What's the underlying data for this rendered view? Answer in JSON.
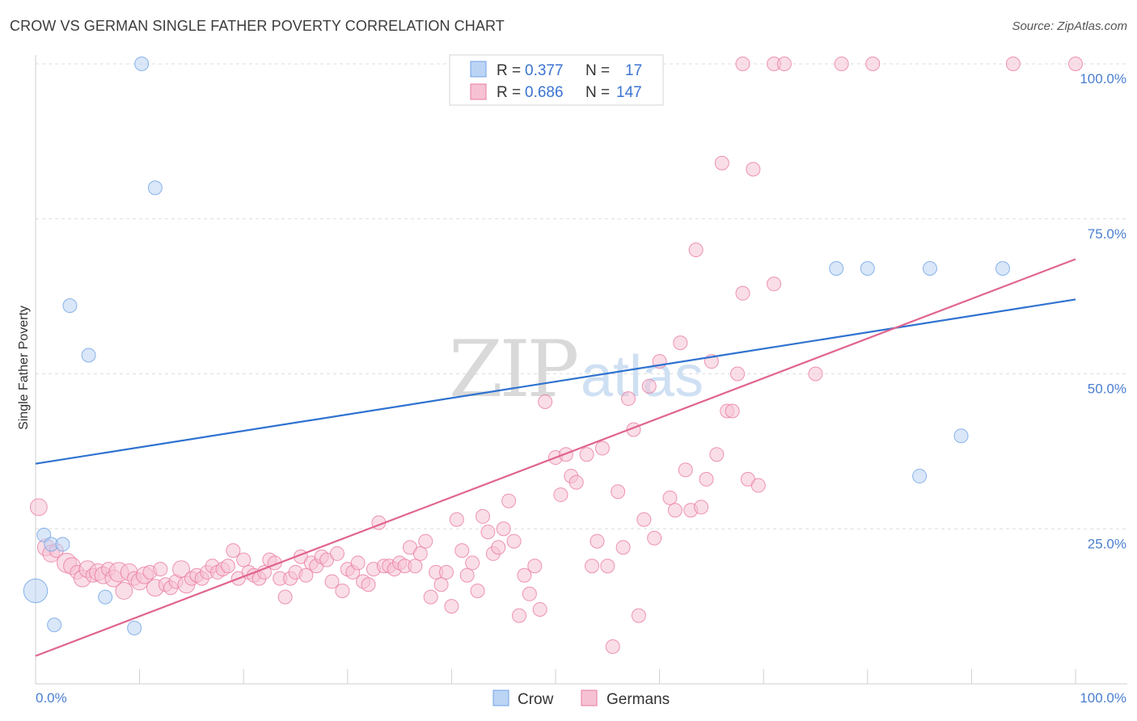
{
  "header": {
    "title": "CROW VS GERMAN SINGLE FATHER POVERTY CORRELATION CHART",
    "source": "Source: ZipAtlas.com"
  },
  "watermark": {
    "part1": "ZIP",
    "part2": "atlas"
  },
  "colors": {
    "crow": "#6ea3e6",
    "crow_fill": "#bcd4f4",
    "germans": "#ea7aa0",
    "germans_fill": "#f6c2d3",
    "crow_line": "#2f72d0",
    "germans_line": "#e0648f",
    "tick": "#4a7fd0"
  },
  "legend": {
    "r_label": "R =",
    "n_label": "N =",
    "rows": [
      {
        "name": "Crow",
        "r": "0.377",
        "n": "17"
      },
      {
        "name": "Germans",
        "r": "0.686",
        "n": "147"
      }
    ]
  },
  "chart_data": {
    "type": "scatter",
    "title": "CROW VS GERMAN SINGLE FATHER POVERTY CORRELATION CHART",
    "ylabel": "Single Father Poverty",
    "xlabel": "",
    "xlim": [
      0,
      100
    ],
    "ylim": [
      0,
      100
    ],
    "x_tick_labels": [
      "0.0%",
      "100.0%"
    ],
    "y_tick_labels": [
      "25.0%",
      "50.0%",
      "75.0%",
      "100.0%"
    ],
    "y_ticks": [
      25,
      50,
      75,
      100
    ],
    "grid": "horizontal dashed",
    "legend_position": "top-center",
    "series": [
      {
        "name": "Crow",
        "r": 0.377,
        "n": 17,
        "trend": {
          "x": [
            0,
            100
          ],
          "y": [
            35.5,
            62.0
          ]
        },
        "points": [
          {
            "x": 0,
            "y": 15,
            "s": 3
          },
          {
            "x": 0.8,
            "y": 24,
            "s": 1
          },
          {
            "x": 1.5,
            "y": 22.5,
            "s": 1
          },
          {
            "x": 1.8,
            "y": 9.5,
            "s": 1
          },
          {
            "x": 2.6,
            "y": 22.5,
            "s": 1
          },
          {
            "x": 3.3,
            "y": 61,
            "s": 1
          },
          {
            "x": 5.1,
            "y": 53,
            "s": 1
          },
          {
            "x": 6.7,
            "y": 14,
            "s": 1
          },
          {
            "x": 9.5,
            "y": 9,
            "s": 1
          },
          {
            "x": 10.2,
            "y": 100,
            "s": 1
          },
          {
            "x": 11.5,
            "y": 80,
            "s": 1
          },
          {
            "x": 77,
            "y": 67,
            "s": 1
          },
          {
            "x": 80,
            "y": 67,
            "s": 1
          },
          {
            "x": 86,
            "y": 67,
            "s": 1
          },
          {
            "x": 89,
            "y": 40,
            "s": 1
          },
          {
            "x": 85,
            "y": 33.5,
            "s": 1
          },
          {
            "x": 93,
            "y": 67,
            "s": 1
          }
        ]
      },
      {
        "name": "Germans",
        "r": 0.686,
        "n": 147,
        "trend": {
          "x": [
            0,
            100
          ],
          "y": [
            4.5,
            68.5
          ]
        },
        "points": [
          {
            "x": 0.3,
            "y": 28.5,
            "s": 1.5
          },
          {
            "x": 1,
            "y": 22,
            "s": 1.5
          },
          {
            "x": 1.5,
            "y": 21,
            "s": 1.5
          },
          {
            "x": 2,
            "y": 21.5,
            "s": 1
          },
          {
            "x": 3,
            "y": 19.5,
            "s": 2
          },
          {
            "x": 3.5,
            "y": 19,
            "s": 1.5
          },
          {
            "x": 4,
            "y": 18,
            "s": 1
          },
          {
            "x": 4.5,
            "y": 17,
            "s": 1.5
          },
          {
            "x": 5,
            "y": 18.5,
            "s": 1.5
          },
          {
            "x": 5.5,
            "y": 17.5,
            "s": 1
          },
          {
            "x": 6,
            "y": 18,
            "s": 1.5
          },
          {
            "x": 6.5,
            "y": 17.5,
            "s": 1.5
          },
          {
            "x": 7,
            "y": 18.5,
            "s": 1
          },
          {
            "x": 7.5,
            "y": 17,
            "s": 1.5
          },
          {
            "x": 8,
            "y": 18,
            "s": 2
          },
          {
            "x": 8.5,
            "y": 15,
            "s": 1.5
          },
          {
            "x": 9,
            "y": 18,
            "s": 1.5
          },
          {
            "x": 9.5,
            "y": 17,
            "s": 1
          },
          {
            "x": 10,
            "y": 16.5,
            "s": 1.5
          },
          {
            "x": 10.5,
            "y": 17.5,
            "s": 1.5
          },
          {
            "x": 11,
            "y": 18,
            "s": 1
          },
          {
            "x": 11.5,
            "y": 15.5,
            "s": 1.5
          },
          {
            "x": 12,
            "y": 18.5,
            "s": 1
          },
          {
            "x": 12.5,
            "y": 16,
            "s": 1
          },
          {
            "x": 13,
            "y": 15.5,
            "s": 1
          },
          {
            "x": 13.5,
            "y": 16.5,
            "s": 1
          },
          {
            "x": 14,
            "y": 18.5,
            "s": 1.5
          },
          {
            "x": 14.5,
            "y": 16,
            "s": 1.5
          },
          {
            "x": 15,
            "y": 17,
            "s": 1
          },
          {
            "x": 15.5,
            "y": 17.5,
            "s": 1
          },
          {
            "x": 16,
            "y": 17,
            "s": 1
          },
          {
            "x": 16.5,
            "y": 18,
            "s": 1
          },
          {
            "x": 17,
            "y": 19,
            "s": 1
          },
          {
            "x": 17.5,
            "y": 18,
            "s": 1
          },
          {
            "x": 18,
            "y": 18.5,
            "s": 1
          },
          {
            "x": 18.5,
            "y": 19,
            "s": 1
          },
          {
            "x": 19,
            "y": 21.5,
            "s": 1
          },
          {
            "x": 19.5,
            "y": 17,
            "s": 1
          },
          {
            "x": 20,
            "y": 20,
            "s": 1
          },
          {
            "x": 20.5,
            "y": 18,
            "s": 1
          },
          {
            "x": 21,
            "y": 17.5,
            "s": 1
          },
          {
            "x": 21.5,
            "y": 17,
            "s": 1
          },
          {
            "x": 22,
            "y": 18,
            "s": 1
          },
          {
            "x": 22.5,
            "y": 20,
            "s": 1
          },
          {
            "x": 23,
            "y": 19.5,
            "s": 1
          },
          {
            "x": 23.5,
            "y": 17,
            "s": 1
          },
          {
            "x": 24,
            "y": 14,
            "s": 1
          },
          {
            "x": 24.5,
            "y": 17,
            "s": 1
          },
          {
            "x": 25,
            "y": 18,
            "s": 1
          },
          {
            "x": 25.5,
            "y": 20.5,
            "s": 1
          },
          {
            "x": 26,
            "y": 17.5,
            "s": 1
          },
          {
            "x": 26.5,
            "y": 19.5,
            "s": 1
          },
          {
            "x": 27,
            "y": 19,
            "s": 1
          },
          {
            "x": 27.5,
            "y": 20.5,
            "s": 1
          },
          {
            "x": 28,
            "y": 20,
            "s": 1
          },
          {
            "x": 28.5,
            "y": 16.5,
            "s": 1
          },
          {
            "x": 29,
            "y": 21,
            "s": 1
          },
          {
            "x": 29.5,
            "y": 15,
            "s": 1
          },
          {
            "x": 30,
            "y": 18.5,
            "s": 1
          },
          {
            "x": 30.5,
            "y": 18,
            "s": 1
          },
          {
            "x": 31,
            "y": 19.5,
            "s": 1
          },
          {
            "x": 31.5,
            "y": 16.5,
            "s": 1
          },
          {
            "x": 32,
            "y": 16,
            "s": 1
          },
          {
            "x": 32.5,
            "y": 18.5,
            "s": 1
          },
          {
            "x": 33,
            "y": 26,
            "s": 1
          },
          {
            "x": 33.5,
            "y": 19,
            "s": 1
          },
          {
            "x": 34,
            "y": 19,
            "s": 1
          },
          {
            "x": 34.5,
            "y": 18.5,
            "s": 1
          },
          {
            "x": 35,
            "y": 19.5,
            "s": 1
          },
          {
            "x": 35.5,
            "y": 19,
            "s": 1
          },
          {
            "x": 36,
            "y": 22,
            "s": 1
          },
          {
            "x": 36.5,
            "y": 19,
            "s": 1
          },
          {
            "x": 37,
            "y": 21,
            "s": 1
          },
          {
            "x": 37.5,
            "y": 23,
            "s": 1
          },
          {
            "x": 38,
            "y": 14,
            "s": 1
          },
          {
            "x": 38.5,
            "y": 18,
            "s": 1
          },
          {
            "x": 39,
            "y": 16,
            "s": 1
          },
          {
            "x": 39.5,
            "y": 18,
            "s": 1
          },
          {
            "x": 40,
            "y": 12.5,
            "s": 1
          },
          {
            "x": 40.5,
            "y": 26.5,
            "s": 1
          },
          {
            "x": 41,
            "y": 21.5,
            "s": 1
          },
          {
            "x": 41.5,
            "y": 17.5,
            "s": 1
          },
          {
            "x": 42,
            "y": 19.5,
            "s": 1
          },
          {
            "x": 42.5,
            "y": 15,
            "s": 1
          },
          {
            "x": 43,
            "y": 27,
            "s": 1
          },
          {
            "x": 43.5,
            "y": 24.5,
            "s": 1
          },
          {
            "x": 44,
            "y": 21,
            "s": 1
          },
          {
            "x": 44.5,
            "y": 22,
            "s": 1
          },
          {
            "x": 45,
            "y": 25,
            "s": 1
          },
          {
            "x": 45.5,
            "y": 29.5,
            "s": 1
          },
          {
            "x": 46,
            "y": 23,
            "s": 1
          },
          {
            "x": 46.5,
            "y": 11,
            "s": 1
          },
          {
            "x": 47,
            "y": 17.5,
            "s": 1
          },
          {
            "x": 47.5,
            "y": 14.5,
            "s": 1
          },
          {
            "x": 48,
            "y": 19,
            "s": 1
          },
          {
            "x": 48.5,
            "y": 12,
            "s": 1
          },
          {
            "x": 49,
            "y": 45.5,
            "s": 1
          },
          {
            "x": 50,
            "y": 36.5,
            "s": 1
          },
          {
            "x": 50.5,
            "y": 30.5,
            "s": 1
          },
          {
            "x": 51,
            "y": 37,
            "s": 1
          },
          {
            "x": 51.5,
            "y": 33.5,
            "s": 1
          },
          {
            "x": 52,
            "y": 32.5,
            "s": 1
          },
          {
            "x": 53,
            "y": 37,
            "s": 1
          },
          {
            "x": 53.5,
            "y": 19,
            "s": 1
          },
          {
            "x": 54,
            "y": 23,
            "s": 1
          },
          {
            "x": 54.5,
            "y": 38,
            "s": 1
          },
          {
            "x": 55,
            "y": 19,
            "s": 1
          },
          {
            "x": 55.5,
            "y": 6,
            "s": 1
          },
          {
            "x": 56,
            "y": 31,
            "s": 1
          },
          {
            "x": 56.5,
            "y": 22,
            "s": 1
          },
          {
            "x": 57,
            "y": 46,
            "s": 1
          },
          {
            "x": 57.5,
            "y": 41,
            "s": 1
          },
          {
            "x": 58,
            "y": 11,
            "s": 1
          },
          {
            "x": 58.5,
            "y": 26.5,
            "s": 1
          },
          {
            "x": 59,
            "y": 48,
            "s": 1
          },
          {
            "x": 59.5,
            "y": 23.5,
            "s": 1
          },
          {
            "x": 60,
            "y": 52,
            "s": 1
          },
          {
            "x": 61,
            "y": 30,
            "s": 1
          },
          {
            "x": 61.5,
            "y": 28,
            "s": 1
          },
          {
            "x": 62,
            "y": 55,
            "s": 1
          },
          {
            "x": 62.5,
            "y": 34.5,
            "s": 1
          },
          {
            "x": 63,
            "y": 28,
            "s": 1
          },
          {
            "x": 63.5,
            "y": 70,
            "s": 1
          },
          {
            "x": 64,
            "y": 28.5,
            "s": 1
          },
          {
            "x": 64.5,
            "y": 33,
            "s": 1
          },
          {
            "x": 65,
            "y": 52,
            "s": 1
          },
          {
            "x": 65.5,
            "y": 37,
            "s": 1
          },
          {
            "x": 66,
            "y": 84,
            "s": 1
          },
          {
            "x": 66.5,
            "y": 44,
            "s": 1
          },
          {
            "x": 67,
            "y": 44,
            "s": 1
          },
          {
            "x": 67.5,
            "y": 50,
            "s": 1
          },
          {
            "x": 68,
            "y": 63,
            "s": 1
          },
          {
            "x": 68.5,
            "y": 33,
            "s": 1
          },
          {
            "x": 69,
            "y": 83,
            "s": 1
          },
          {
            "x": 69.5,
            "y": 32,
            "s": 1
          },
          {
            "x": 71,
            "y": 64.5,
            "s": 1
          },
          {
            "x": 75,
            "y": 50,
            "s": 1
          },
          {
            "x": 68,
            "y": 100,
            "s": 1
          },
          {
            "x": 71,
            "y": 100,
            "s": 1
          },
          {
            "x": 72,
            "y": 100,
            "s": 1
          },
          {
            "x": 77.5,
            "y": 100,
            "s": 1
          },
          {
            "x": 80.5,
            "y": 100,
            "s": 1
          },
          {
            "x": 94,
            "y": 100,
            "s": 1
          },
          {
            "x": 100,
            "y": 100,
            "s": 1
          }
        ]
      }
    ]
  }
}
